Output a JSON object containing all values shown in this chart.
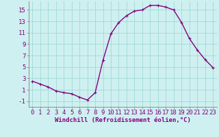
{
  "x": [
    0,
    1,
    2,
    3,
    4,
    5,
    6,
    7,
    8,
    9,
    10,
    11,
    12,
    13,
    14,
    15,
    16,
    17,
    18,
    19,
    20,
    21,
    22,
    23
  ],
  "y": [
    2.5,
    2.0,
    1.5,
    0.8,
    0.5,
    0.3,
    -0.3,
    -0.8,
    0.5,
    6.2,
    10.8,
    12.8,
    14.0,
    14.8,
    15.0,
    15.8,
    15.8,
    15.5,
    15.0,
    12.8,
    10.0,
    8.0,
    6.3,
    4.9
  ],
  "line_color": "#800080",
  "marker": "P",
  "bg_color": "#cff0f0",
  "grid_color": "#a0d8d8",
  "xlabel": "Windchill (Refroidissement éolien,°C)",
  "xlabel_color": "#800080",
  "tick_color": "#800080",
  "spine_color": "#808080",
  "ylim": [
    -2,
    16.5
  ],
  "xlim": [
    -0.5,
    23.5
  ],
  "yticks": [
    -1,
    1,
    3,
    5,
    7,
    9,
    11,
    13,
    15
  ],
  "xticks": [
    0,
    1,
    2,
    3,
    4,
    5,
    6,
    7,
    8,
    9,
    10,
    11,
    12,
    13,
    14,
    15,
    16,
    17,
    18,
    19,
    20,
    21,
    22,
    23
  ],
  "marker_size": 3.0,
  "line_width": 1.0,
  "tick_fontsize": 6.5,
  "xlabel_fontsize": 6.5
}
